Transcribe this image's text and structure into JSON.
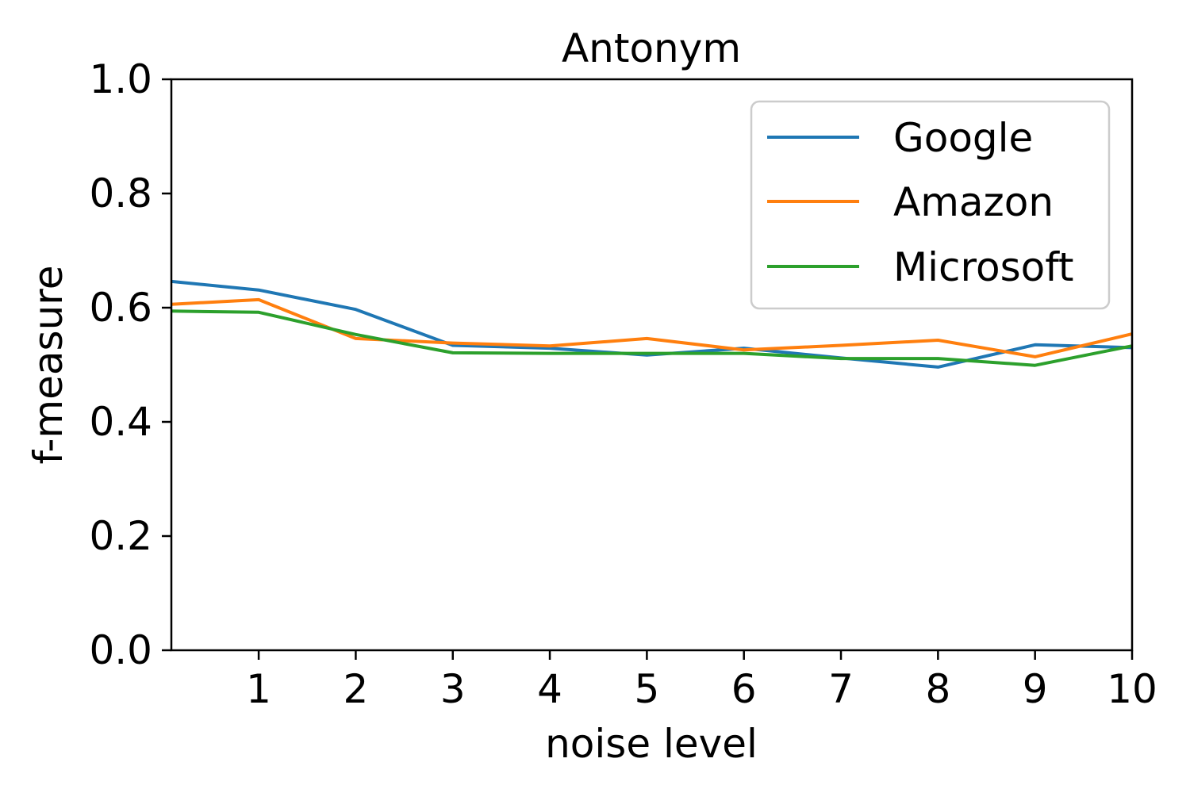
{
  "chart_data": {
    "type": "line",
    "title": "Antonym",
    "xlabel": "noise level",
    "ylabel": "f-measure",
    "xlim": [
      0.1,
      10
    ],
    "ylim": [
      0.0,
      1.0
    ],
    "xticks": [
      1,
      2,
      3,
      4,
      5,
      6,
      7,
      8,
      9,
      10
    ],
    "yticks": [
      0.0,
      0.2,
      0.4,
      0.6,
      0.8,
      1.0
    ],
    "ytick_labels": [
      "0.0",
      "0.2",
      "0.4",
      "0.6",
      "0.8",
      "1.0"
    ],
    "legend_position": "top-right",
    "grid": false,
    "x": [
      0.1,
      1,
      2,
      3,
      4,
      5,
      6,
      7,
      8,
      9,
      10
    ],
    "series": [
      {
        "name": "Google",
        "color": "#1f77b4",
        "values": [
          0.646,
          0.631,
          0.597,
          0.534,
          0.529,
          0.517,
          0.529,
          0.512,
          0.496,
          0.535,
          0.53
        ]
      },
      {
        "name": "Amazon",
        "color": "#ff7f0e",
        "values": [
          0.606,
          0.614,
          0.546,
          0.538,
          0.533,
          0.546,
          0.526,
          0.534,
          0.543,
          0.514,
          0.554
        ]
      },
      {
        "name": "Microsoft",
        "color": "#2ca02c",
        "values": [
          0.594,
          0.592,
          0.553,
          0.521,
          0.52,
          0.52,
          0.52,
          0.511,
          0.511,
          0.499,
          0.533
        ]
      }
    ]
  }
}
